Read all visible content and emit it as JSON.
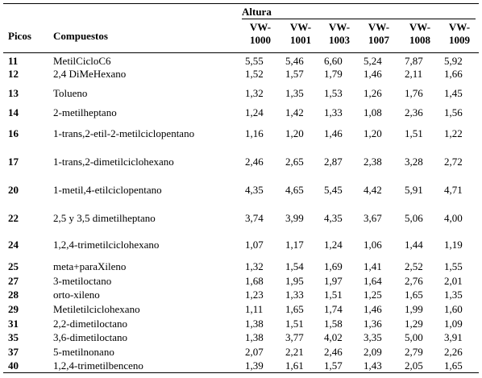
{
  "header": {
    "group_label": "Altura",
    "picos_label": "Picos",
    "compuestos_label": "Compuestos",
    "columns": [
      {
        "line1": "VW-",
        "line2": "1000"
      },
      {
        "line1": "VW-",
        "line2": "1001"
      },
      {
        "line1": "VW-",
        "line2": "1003"
      },
      {
        "line1": "VW-",
        "line2": "1007"
      },
      {
        "line1": "VW-",
        "line2": "1008"
      },
      {
        "line1": "VW-",
        "line2": "1009"
      }
    ]
  },
  "rows": [
    {
      "pico": "11",
      "compuesto": "MetilCicloC6",
      "values": [
        "5,55",
        "5,46",
        "6,60",
        "5,24",
        "7,87",
        "5,92"
      ]
    },
    {
      "pico": "12",
      "compuesto": "2,4 DiMeHexano",
      "values": [
        "1,52",
        "1,57",
        "1,79",
        "1,46",
        "2,11",
        "1,66"
      ]
    },
    {
      "pico": "13",
      "compuesto": "Tolueno",
      "values": [
        "1,32",
        "1,35",
        "1,53",
        "1,26",
        "1,76",
        "1,45"
      ]
    },
    {
      "pico": "14",
      "compuesto": "2-metilheptano",
      "values": [
        "1,24",
        "1,42",
        "1,33",
        "1,08",
        "2,36",
        "1,56"
      ]
    },
    {
      "pico": "16",
      "compuesto": "1-trans,2-etil-2-metilciclopentano",
      "values": [
        "1,16",
        "1,20",
        "1,46",
        "1,20",
        "1,51",
        "1,22"
      ]
    },
    {
      "pico": "17",
      "compuesto": "1-trans,2-dimetilciclohexano",
      "values": [
        "2,46",
        "2,65",
        "2,87",
        "2,38",
        "3,28",
        "2,72"
      ]
    },
    {
      "pico": "20",
      "compuesto": "1-metil,4-etilciclopentano",
      "values": [
        "4,35",
        "4,65",
        "5,45",
        "4,42",
        "5,91",
        "4,71"
      ]
    },
    {
      "pico": "22",
      "compuesto": "2,5 y 3,5 dimetilheptano",
      "values": [
        "3,74",
        "3,99",
        "4,35",
        "3,67",
        "5,06",
        "4,00"
      ]
    },
    {
      "pico": "24",
      "compuesto": "1,2,4-trimetilciclohexano",
      "values": [
        "1,07",
        "1,17",
        "1,24",
        "1,06",
        "1,44",
        "1,19"
      ]
    },
    {
      "pico": "25",
      "compuesto": "meta+paraXileno",
      "values": [
        "1,32",
        "1,54",
        "1,69",
        "1,41",
        "2,52",
        "1,55"
      ]
    },
    {
      "pico": "27",
      "compuesto": "3-metiloctano",
      "values": [
        "1,68",
        "1,95",
        "1,97",
        "1,64",
        "2,76",
        "2,01"
      ]
    },
    {
      "pico": "28",
      "compuesto": "orto-xileno",
      "values": [
        "1,23",
        "1,33",
        "1,51",
        "1,25",
        "1,65",
        "1,35"
      ]
    },
    {
      "pico": "29",
      "compuesto": "Metiletilciclohexano",
      "values": [
        "1,11",
        "1,65",
        "1,74",
        "1,46",
        "1,99",
        "1,60"
      ]
    },
    {
      "pico": "31",
      "compuesto": "2,2-dimetiloctano",
      "values": [
        "1,38",
        "1,51",
        "1,58",
        "1,36",
        "1,29",
        "1,09"
      ]
    },
    {
      "pico": "35",
      "compuesto": "3,6-dimetiloctano",
      "values": [
        "1,38",
        "3,77",
        "4,02",
        "3,35",
        "5,00",
        "3,91"
      ]
    },
    {
      "pico": "37",
      "compuesto": "5-metilnonano",
      "values": [
        "2,07",
        "2,21",
        "2,46",
        "2,09",
        "2,79",
        "2,26"
      ]
    },
    {
      "pico": "40",
      "compuesto": "1,2,4-trimetilbenceno",
      "values": [
        "1,39",
        "1,61",
        "1,57",
        "1,43",
        "2,05",
        "1,65"
      ]
    }
  ]
}
